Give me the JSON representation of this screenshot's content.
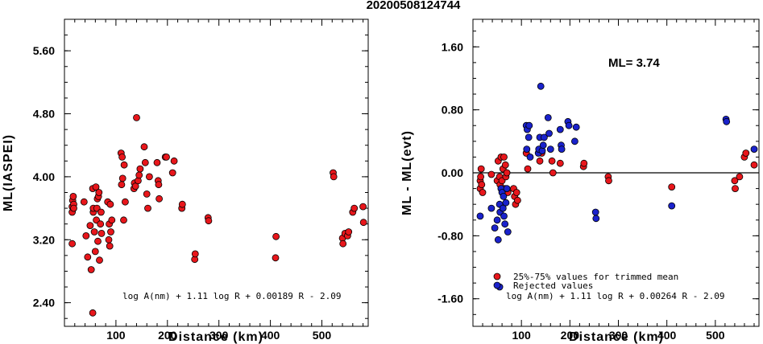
{
  "title": "20200508124744",
  "chart_data": [
    {
      "type": "scatter",
      "ylabel": "ML(IASPEI)",
      "xlabel": "Distance (km)",
      "xlim": [
        0,
        590
      ],
      "ylim": [
        2.1,
        6.0
      ],
      "xticks": [
        100,
        200,
        300,
        400,
        500
      ],
      "yticks": [
        2.4,
        3.2,
        4.0,
        4.8,
        5.6
      ],
      "ytick_labels": [
        "2.40",
        "3.20",
        "4.00",
        "4.80",
        "5.60"
      ],
      "annotation": "log A(nm) + 1.11 log R + 0.00189 R - 2.09",
      "series": [
        {
          "color": "#e8161b",
          "points": [
            [
              15,
              3.15
            ],
            [
              15,
              3.55
            ],
            [
              15,
              3.62
            ],
            [
              16,
              3.7
            ],
            [
              17,
              3.75
            ],
            [
              18,
              3.65
            ],
            [
              18,
              3.6
            ],
            [
              38,
              3.68
            ],
            [
              42,
              3.25
            ],
            [
              45,
              2.98
            ],
            [
              50,
              3.38
            ],
            [
              52,
              2.82
            ],
            [
              55,
              3.85
            ],
            [
              56,
              3.55
            ],
            [
              56,
              3.6
            ],
            [
              58,
              3.3
            ],
            [
              60,
              3.05
            ],
            [
              61,
              3.87
            ],
            [
              62,
              3.45
            ],
            [
              63,
              3.6
            ],
            [
              64,
              3.72
            ],
            [
              65,
              3.18
            ],
            [
              66,
              3.75
            ],
            [
              67,
              3.8
            ],
            [
              68,
              2.94
            ],
            [
              70,
              3.4
            ],
            [
              71,
              3.55
            ],
            [
              72,
              3.28
            ],
            [
              84,
              3.68
            ],
            [
              86,
              3.2
            ],
            [
              87,
              3.4
            ],
            [
              88,
              3.12
            ],
            [
              89,
              3.65
            ],
            [
              90,
              3.3
            ],
            [
              92,
              3.45
            ],
            [
              110,
              4.3
            ],
            [
              111,
              3.9
            ],
            [
              112,
              4.25
            ],
            [
              113,
              3.98
            ],
            [
              115,
              3.45
            ],
            [
              116,
              4.15
            ],
            [
              118,
              3.68
            ],
            [
              135,
              3.85
            ],
            [
              136,
              3.92
            ],
            [
              138,
              3.88
            ],
            [
              140,
              4.75
            ],
            [
              143,
              3.95
            ],
            [
              145,
              4.02
            ],
            [
              147,
              4.1
            ],
            [
              155,
              4.38
            ],
            [
              157,
              4.18
            ],
            [
              160,
              3.78
            ],
            [
              162,
              3.6
            ],
            [
              165,
              4.0
            ],
            [
              180,
              4.18
            ],
            [
              182,
              3.95
            ],
            [
              183,
              3.9
            ],
            [
              184,
              3.72
            ],
            [
              196,
              4.25
            ],
            [
              198,
              4.25
            ],
            [
              210,
              4.05
            ],
            [
              213,
              4.2
            ],
            [
              228,
              3.6
            ],
            [
              229,
              3.65
            ],
            [
              253,
              2.95
            ],
            [
              254,
              3.02
            ],
            [
              279,
              3.48
            ],
            [
              280,
              3.44
            ],
            [
              410,
              2.97
            ],
            [
              411,
              3.24
            ],
            [
              522,
              4.05
            ],
            [
              523,
              4.0
            ],
            [
              540,
              3.22
            ],
            [
              541,
              3.15
            ],
            [
              545,
              3.28
            ],
            [
              550,
              3.25
            ],
            [
              552,
              3.3
            ],
            [
              560,
              3.55
            ],
            [
              563,
              3.6
            ],
            [
              580,
              3.62
            ],
            [
              581,
              3.42
            ],
            [
              55,
              2.27
            ]
          ]
        }
      ]
    },
    {
      "type": "scatter",
      "ylabel": "ML - ML(evt)",
      "xlabel": "Distance (km)",
      "xlim": [
        0,
        590
      ],
      "ylim": [
        -1.95,
        1.95
      ],
      "xticks": [
        100,
        200,
        300,
        400,
        500
      ],
      "yticks": [
        -1.6,
        -0.8,
        0.0,
        0.8,
        1.6
      ],
      "ytick_labels": [
        "-1.60",
        "-0.80",
        "0.00",
        "0.80",
        "1.60"
      ],
      "ml_label": "ML= 3.74",
      "annotation": "log A(nm) + 1.11 log R + 0.00264 R - 2.09",
      "legend": [
        "25%-75% values for trimmed mean",
        "Rejected values"
      ],
      "series": [
        {
          "name": "25%-75% values for trimmed mean",
          "color": "#e8161b",
          "points": [
            [
              15,
              -0.2
            ],
            [
              15,
              -0.1
            ],
            [
              16,
              -0.05
            ],
            [
              17,
              0.05
            ],
            [
              18,
              -0.15
            ],
            [
              20,
              -0.25
            ],
            [
              38,
              -0.02
            ],
            [
              50,
              -0.1
            ],
            [
              52,
              0.15
            ],
            [
              55,
              -0.05
            ],
            [
              56,
              -0.15
            ],
            [
              58,
              0.2
            ],
            [
              60,
              -0.1
            ],
            [
              62,
              0.05
            ],
            [
              64,
              0.2
            ],
            [
              66,
              -0.2
            ],
            [
              67,
              0.1
            ],
            [
              68,
              -0.05
            ],
            [
              70,
              0.0
            ],
            [
              72,
              -0.25
            ],
            [
              84,
              -0.2
            ],
            [
              86,
              -0.3
            ],
            [
              88,
              -0.4
            ],
            [
              90,
              -0.25
            ],
            [
              92,
              -0.35
            ],
            [
              110,
              0.25
            ],
            [
              113,
              0.05
            ],
            [
              138,
              0.15
            ],
            [
              142,
              0.25
            ],
            [
              163,
              0.15
            ],
            [
              165,
              0.0
            ],
            [
              180,
              0.12
            ],
            [
              228,
              0.08
            ],
            [
              229,
              0.12
            ],
            [
              279,
              -0.05
            ],
            [
              280,
              -0.1
            ],
            [
              410,
              -0.18
            ],
            [
              540,
              -0.1
            ],
            [
              541,
              -0.2
            ],
            [
              550,
              -0.05
            ],
            [
              560,
              0.2
            ],
            [
              563,
              0.25
            ],
            [
              580,
              0.1
            ]
          ]
        },
        {
          "name": "Rejected values",
          "color": "#1a22cc",
          "points": [
            [
              15,
              -0.55
            ],
            [
              38,
              -0.45
            ],
            [
              45,
              -0.7
            ],
            [
              50,
              -0.6
            ],
            [
              52,
              -0.85
            ],
            [
              55,
              -0.4
            ],
            [
              56,
              -0.5
            ],
            [
              58,
              -0.2
            ],
            [
              60,
              -0.25
            ],
            [
              62,
              -0.45
            ],
            [
              63,
              -0.3
            ],
            [
              64,
              -0.55
            ],
            [
              66,
              -0.65
            ],
            [
              68,
              -0.38
            ],
            [
              70,
              -0.2
            ],
            [
              72,
              -0.75
            ],
            [
              110,
              0.6
            ],
            [
              111,
              0.3
            ],
            [
              112,
              0.55
            ],
            [
              115,
              0.45
            ],
            [
              116,
              0.6
            ],
            [
              118,
              0.2
            ],
            [
              135,
              0.25
            ],
            [
              136,
              0.3
            ],
            [
              138,
              0.45
            ],
            [
              140,
              1.1
            ],
            [
              143,
              0.28
            ],
            [
              145,
              0.35
            ],
            [
              147,
              0.45
            ],
            [
              155,
              0.7
            ],
            [
              157,
              0.5
            ],
            [
              160,
              0.3
            ],
            [
              180,
              0.55
            ],
            [
              182,
              0.35
            ],
            [
              183,
              0.3
            ],
            [
              196,
              0.65
            ],
            [
              198,
              0.6
            ],
            [
              210,
              0.4
            ],
            [
              213,
              0.58
            ],
            [
              253,
              -0.5
            ],
            [
              254,
              -0.58
            ],
            [
              410,
              -0.42
            ],
            [
              522,
              0.68
            ],
            [
              523,
              0.65
            ],
            [
              580,
              0.3
            ],
            [
              55,
              -1.45
            ]
          ]
        }
      ]
    }
  ]
}
